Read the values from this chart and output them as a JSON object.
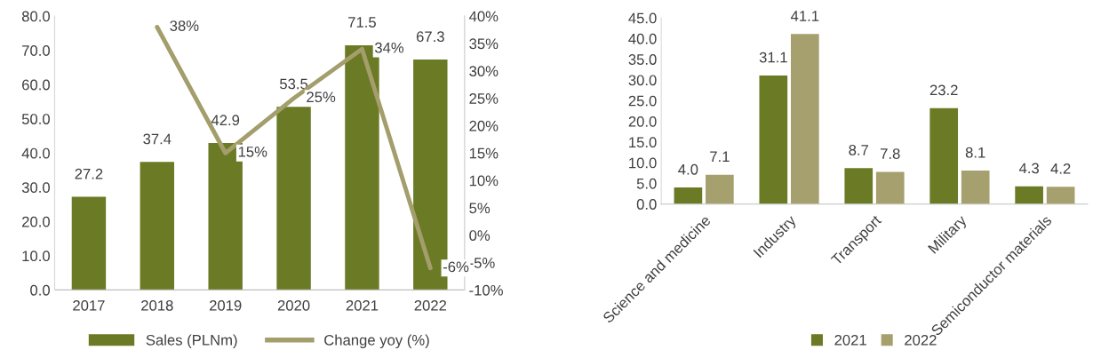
{
  "chart_data": [
    {
      "type": "bar",
      "categories": [
        "2017",
        "2018",
        "2019",
        "2020",
        "2021",
        "2022"
      ],
      "series": [
        {
          "name": "Sales (PLNm)",
          "color": "#6b7b25",
          "values": [
            27.2,
            37.4,
            42.9,
            53.5,
            71.5,
            67.3
          ]
        },
        {
          "name": "Change yoy (%)",
          "type": "line",
          "axis": "y2",
          "color": "#a39e6c",
          "values": [
            null,
            38,
            15,
            25,
            34,
            -6
          ],
          "value_labels": [
            null,
            "38%",
            "15%",
            "25%",
            "34%",
            "-6%"
          ]
        }
      ],
      "data_labels": true,
      "ylim": [
        0,
        80
      ],
      "yticks": [
        {
          "value": 0,
          "label": "0.0"
        },
        {
          "value": 10,
          "label": "10.0"
        },
        {
          "value": 20,
          "label": "20.0"
        },
        {
          "value": 30,
          "label": "30.0"
        },
        {
          "value": 40,
          "label": "40.0"
        },
        {
          "value": 50,
          "label": "50.0"
        },
        {
          "value": 60,
          "label": "60.0"
        },
        {
          "value": 70,
          "label": "70.0"
        },
        {
          "value": 80,
          "label": "80.0"
        }
      ],
      "y2lim": [
        -10,
        40
      ],
      "y2ticks": [
        {
          "value": -10,
          "label": "-10%"
        },
        {
          "value": -5,
          "label": "-5%"
        },
        {
          "value": 0,
          "label": "0%"
        },
        {
          "value": 5,
          "label": "5%"
        },
        {
          "value": 10,
          "label": "10%"
        },
        {
          "value": 15,
          "label": "15%"
        },
        {
          "value": 20,
          "label": "20%"
        },
        {
          "value": 25,
          "label": "25%"
        },
        {
          "value": 30,
          "label": "30%"
        },
        {
          "value": 35,
          "label": "35%"
        },
        {
          "value": 40,
          "label": "40%"
        }
      ],
      "legend": "bottom",
      "grid": false
    },
    {
      "type": "bar",
      "categories": [
        "Science and medicine",
        "Industry",
        "Transport",
        "Military",
        "Semiconductor materials"
      ],
      "series": [
        {
          "name": "2021",
          "color": "#6b7b25",
          "values": [
            4.0,
            31.1,
            8.7,
            23.2,
            4.3
          ],
          "value_labels": [
            "4.0",
            "31.1",
            "8.7",
            "23.2",
            "4.3"
          ]
        },
        {
          "name": "2022",
          "color": "#a5a06e",
          "values": [
            7.1,
            41.1,
            7.8,
            8.1,
            4.2
          ],
          "value_labels": [
            "7.1",
            "41.1",
            "7.8",
            "8.1",
            "4.2"
          ]
        }
      ],
      "ylim": [
        0,
        45
      ],
      "yticks": [
        {
          "value": 0,
          "label": "0.0"
        },
        {
          "value": 5,
          "label": "5.0"
        },
        {
          "value": 10,
          "label": "10.0"
        },
        {
          "value": 15,
          "label": "15.0"
        },
        {
          "value": 20,
          "label": "20.0"
        },
        {
          "value": 25,
          "label": "25.0"
        },
        {
          "value": 30,
          "label": "30.0"
        },
        {
          "value": 35,
          "label": "35.0"
        },
        {
          "value": 40,
          "label": "40.0"
        },
        {
          "value": 45,
          "label": "45.0"
        }
      ],
      "legend": "bottom",
      "grid": false
    }
  ]
}
